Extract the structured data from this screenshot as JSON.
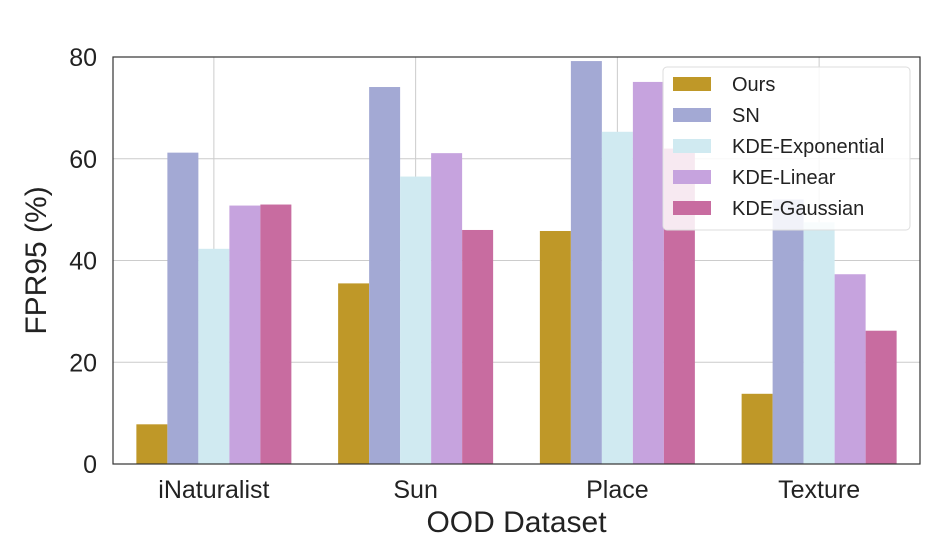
{
  "chart_data": {
    "type": "bar",
    "categories": [
      "iNaturalist",
      "Sun",
      "Place",
      "Texture"
    ],
    "series": [
      {
        "name": "Ours",
        "values": [
          7.8,
          35.5,
          45.8,
          13.8
        ],
        "color": "#bf9828"
      },
      {
        "name": "SN",
        "values": [
          61.2,
          74.1,
          79.2,
          52.0
        ],
        "color": "#a3a9d4"
      },
      {
        "name": "KDE-Exponential",
        "values": [
          42.3,
          56.5,
          65.3,
          47.5
        ],
        "color": "#d0eaf1"
      },
      {
        "name": "KDE-Linear",
        "values": [
          50.8,
          61.1,
          75.1,
          37.3
        ],
        "color": "#c6a3de"
      },
      {
        "name": "KDE-Gaussian",
        "values": [
          51.0,
          46.0,
          62.0,
          26.2
        ],
        "color": "#c86ca0"
      }
    ],
    "xlabel": "OOD Dataset",
    "ylabel": "FPR95 (%)",
    "ylim": [
      0,
      80
    ],
    "yticks": [
      0,
      20,
      40,
      60,
      80
    ],
    "grid": true,
    "legend_position": "upper-right"
  }
}
